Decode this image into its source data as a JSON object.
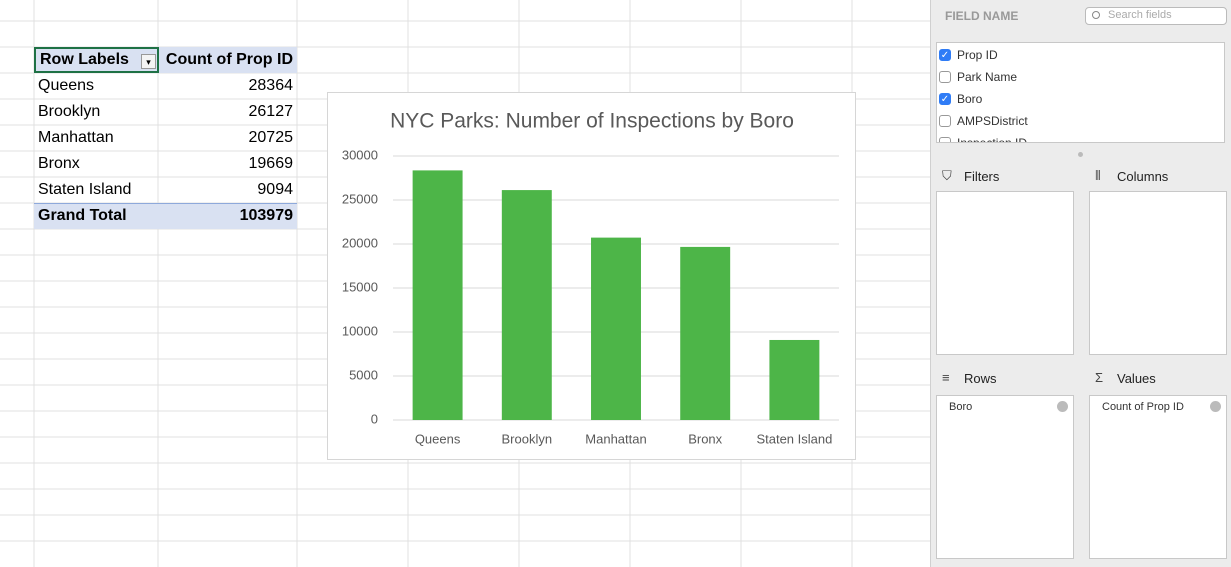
{
  "pivot": {
    "headers": [
      "Row Labels",
      "Count of Prop ID"
    ],
    "rows": [
      [
        "Queens",
        28364
      ],
      [
        "Brooklyn",
        26127
      ],
      [
        "Manhattan",
        20725
      ],
      [
        "Bronx",
        19669
      ],
      [
        "Staten Island",
        9094
      ]
    ],
    "total": [
      "Grand Total",
      103979
    ]
  },
  "chart_data": {
    "type": "bar",
    "title": "NYC Parks: Number of Inspections by Boro",
    "categories": [
      "Queens",
      "Brooklyn",
      "Manhattan",
      "Bronx",
      "Staten Island"
    ],
    "values": [
      28364,
      26127,
      20725,
      19669,
      9094
    ],
    "color": "#4db548",
    "ylim": [
      0,
      30000
    ],
    "yticks": [
      0,
      5000,
      10000,
      15000,
      20000,
      25000,
      30000
    ],
    "grid": true
  },
  "field_pane": {
    "heading": "FIELD NAME",
    "search_placeholder": "Search fields",
    "fields": [
      {
        "label": "Prop ID",
        "checked": true
      },
      {
        "label": "Park Name",
        "checked": false
      },
      {
        "label": "Boro",
        "checked": true
      },
      {
        "label": "AMPSDistrict",
        "checked": false
      },
      {
        "label": "Inspection ID",
        "checked": false
      }
    ],
    "areas": [
      {
        "label": "Filters",
        "items": []
      },
      {
        "label": "Columns",
        "items": []
      },
      {
        "label": "Rows",
        "items": [
          "Boro"
        ]
      },
      {
        "label": "Values",
        "items": [
          "Count of Prop ID"
        ]
      }
    ]
  }
}
